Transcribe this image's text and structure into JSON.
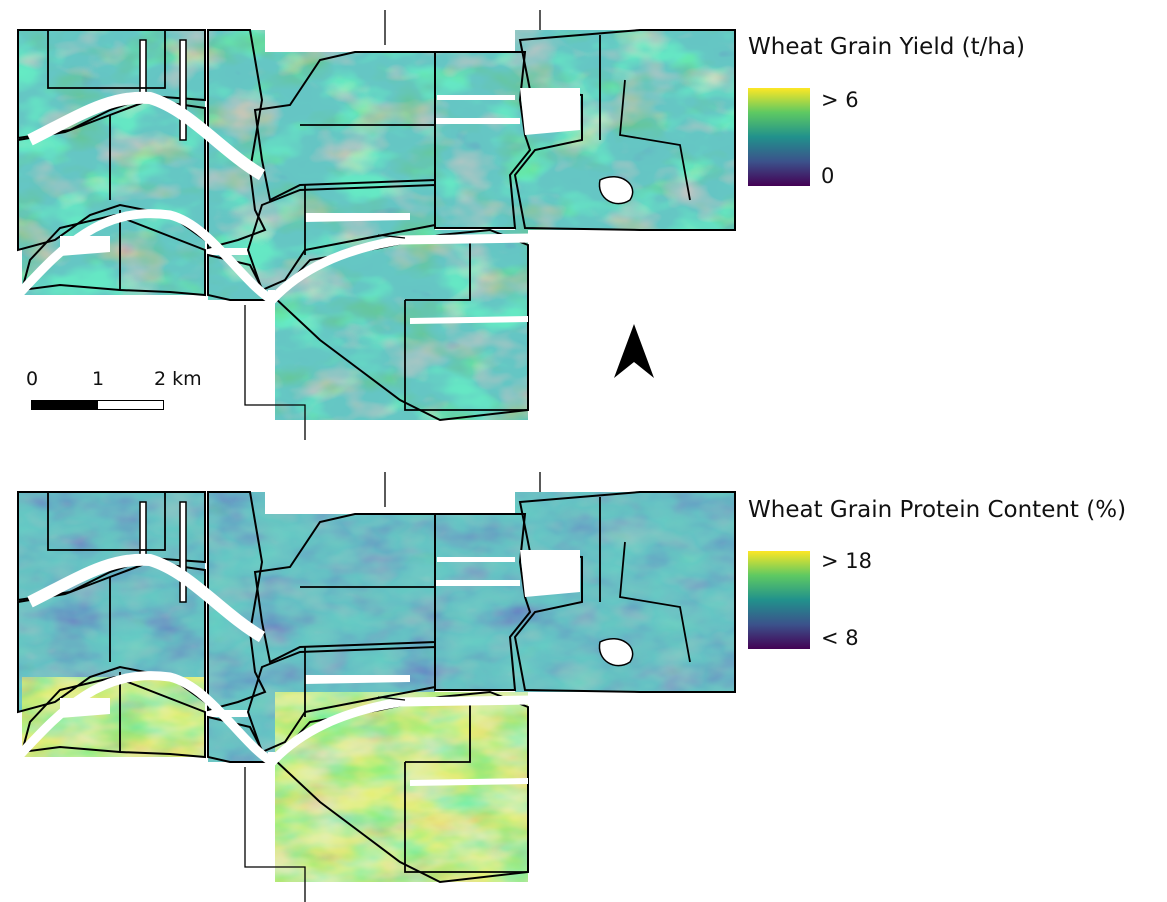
{
  "colors": {
    "viridis": [
      "#440154",
      "#3b528b",
      "#21918c",
      "#5ec962",
      "#fde725"
    ],
    "boundary": "#000000"
  },
  "panels": [
    {
      "legend_title": "Wheat Grain Yield (t/ha)",
      "legend_max": "> 6",
      "legend_min": "0",
      "bias": 0
    },
    {
      "legend_title": "Wheat Grain Protein Content (%)",
      "legend_max": "> 18",
      "legend_min": "< 8",
      "bias": 0.6
    }
  ],
  "scalebar": {
    "label_0": "0",
    "label_1": "1",
    "label_2": "2 km"
  },
  "north_arrow": "north-arrow-icon"
}
